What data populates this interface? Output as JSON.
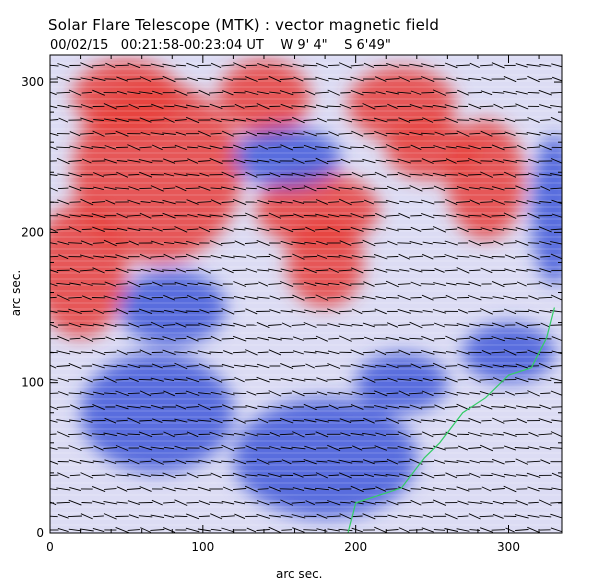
{
  "chart_data": {
    "type": "heatmap",
    "title": "Solar Flare Telescope (MTK) : vector magnetic field",
    "subtitle": {
      "date": "00/02/15",
      "time_range": "00:21:58-00:23:04 UT",
      "lon": "W 9' 4\"",
      "lat": "S 6'49\""
    },
    "xlabel": "arc sec.",
    "ylabel": "arc sec.",
    "xlim": [
      0,
      335
    ],
    "ylim": [
      0,
      318
    ],
    "x_ticks": [
      0,
      100,
      200,
      300
    ],
    "y_ticks": [
      0,
      100,
      200,
      300
    ],
    "colormap": {
      "positive": "#e8403c",
      "negative": "#3a52d8",
      "neutral": "#ffffff"
    },
    "positive_regions": [
      {
        "name": "upper-left red",
        "x": 70,
        "y": 240,
        "rx": 55,
        "ry": 60
      },
      {
        "name": "left-edge red",
        "x": 20,
        "y": 175,
        "rx": 30,
        "ry": 45
      },
      {
        "name": "top-left red",
        "x": 50,
        "y": 290,
        "rx": 35,
        "ry": 25
      },
      {
        "name": "top-center red",
        "x": 140,
        "y": 290,
        "rx": 30,
        "ry": 25
      },
      {
        "name": "middle red",
        "x": 175,
        "y": 215,
        "rx": 40,
        "ry": 25
      },
      {
        "name": "lower-middle red",
        "x": 180,
        "y": 180,
        "rx": 25,
        "ry": 30
      },
      {
        "name": "upper-right red",
        "x": 230,
        "y": 285,
        "rx": 35,
        "ry": 25
      },
      {
        "name": "right red",
        "x": 285,
        "y": 235,
        "rx": 25,
        "ry": 40
      },
      {
        "name": "far-right red",
        "x": 250,
        "y": 255,
        "rx": 30,
        "ry": 20
      }
    ],
    "negative_regions": [
      {
        "name": "central blue",
        "x": 155,
        "y": 250,
        "rx": 35,
        "ry": 20
      },
      {
        "name": "left blue",
        "x": 80,
        "y": 150,
        "rx": 35,
        "ry": 25
      },
      {
        "name": "right-edge blue",
        "x": 330,
        "y": 215,
        "rx": 15,
        "ry": 50
      },
      {
        "name": "lower-right blue",
        "x": 300,
        "y": 120,
        "rx": 30,
        "ry": 20
      },
      {
        "name": "lower blue",
        "x": 230,
        "y": 100,
        "rx": 30,
        "ry": 20
      },
      {
        "name": "bottom blue",
        "x": 180,
        "y": 50,
        "rx": 60,
        "ry": 40
      },
      {
        "name": "bottom-left blue",
        "x": 70,
        "y": 80,
        "rx": 50,
        "ry": 40
      }
    ],
    "contour": {
      "color": "#33cc66",
      "points": [
        [
          195,
          0
        ],
        [
          200,
          20
        ],
        [
          230,
          30
        ],
        [
          245,
          50
        ],
        [
          255,
          60
        ],
        [
          270,
          80
        ],
        [
          285,
          90
        ],
        [
          300,
          105
        ],
        [
          315,
          110
        ],
        [
          325,
          130
        ],
        [
          330,
          150
        ]
      ]
    },
    "vectors": {
      "color": "#000000",
      "dominant_direction_deg": -10,
      "grid_rows_per_100": 11,
      "grid_cols_per_100": 13
    }
  }
}
